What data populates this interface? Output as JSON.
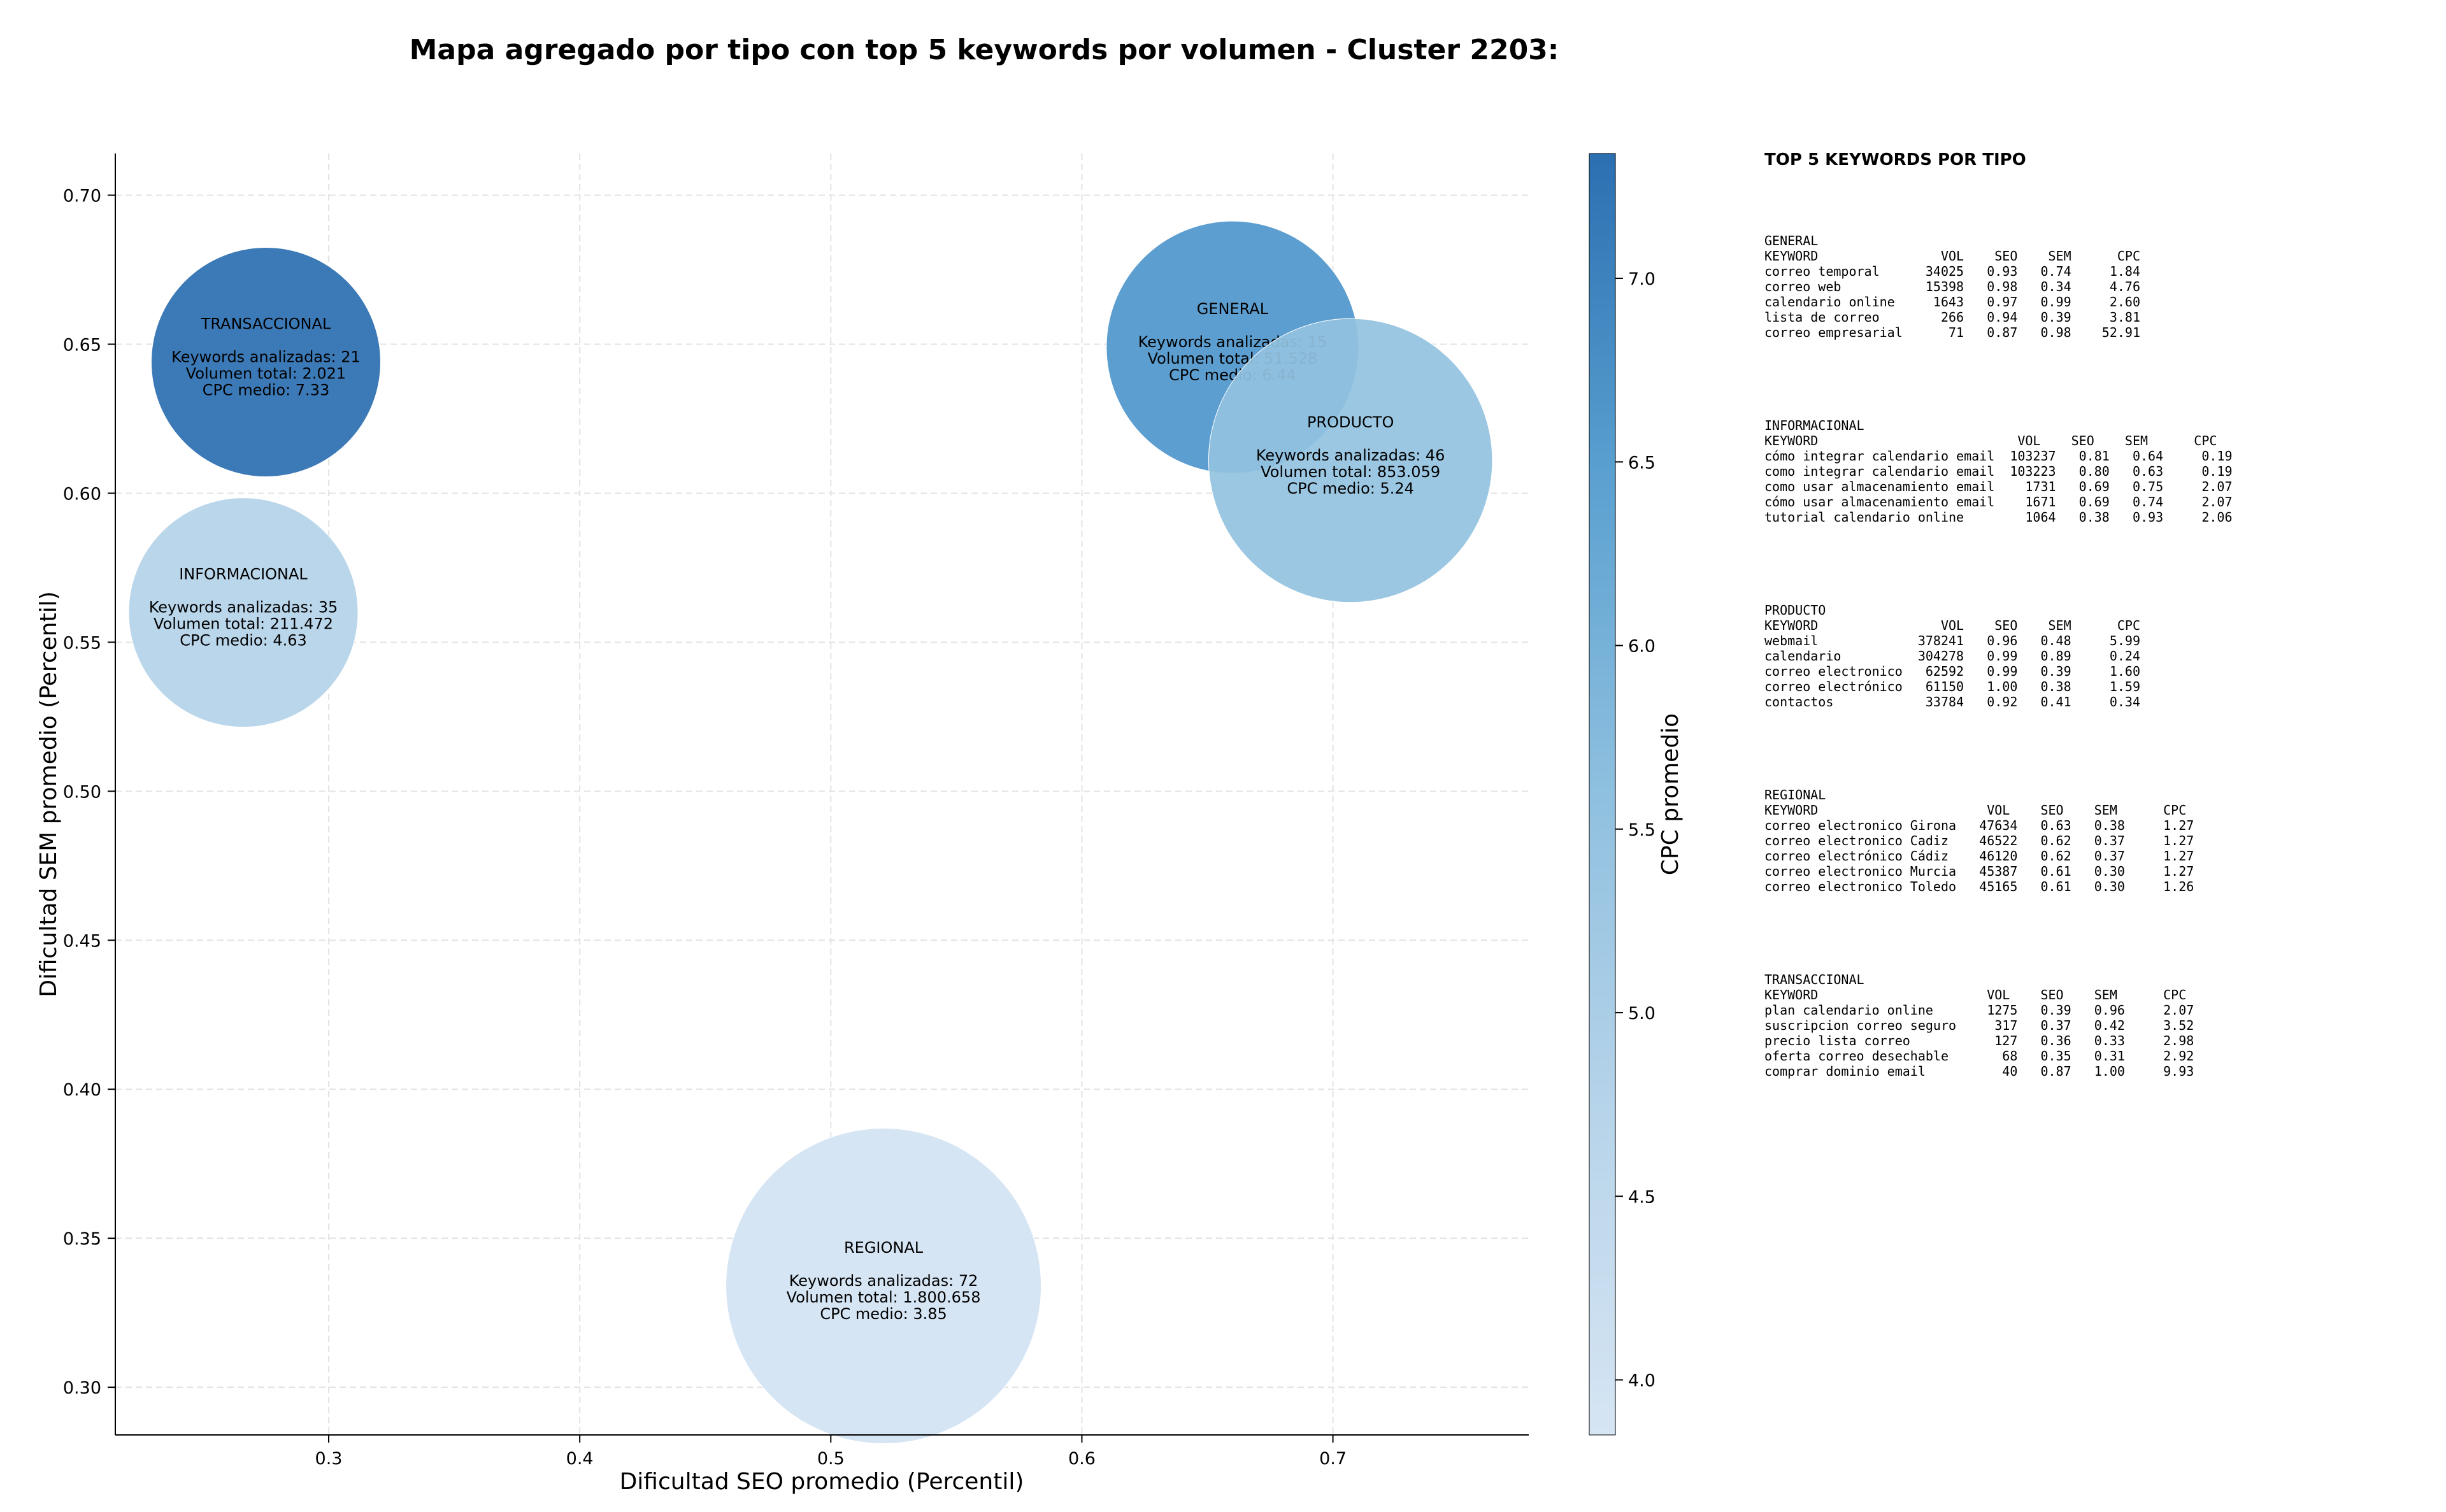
{
  "chart_data": {
    "type": "scatter",
    "title": "Mapa agregado por tipo con top 5 keywords por volumen - Cluster 2203:",
    "xlabel": "Dificultad SEO promedio (Percentil)",
    "ylabel": "Dificultad SEM promedio (Percentil)",
    "colorbar_label": "CPC promedio",
    "xlim": [
      0.215,
      0.778
    ],
    "ylim": [
      0.284,
      0.714
    ],
    "xticks": [
      "0.3",
      "0.4",
      "0.5",
      "0.6",
      "0.7"
    ],
    "yticks": [
      "0.30",
      "0.35",
      "0.40",
      "0.45",
      "0.50",
      "0.55",
      "0.60",
      "0.65",
      "0.70"
    ],
    "colorbar_range": [
      3.85,
      7.34
    ],
    "colorbar_ticks": [
      "4.0",
      "4.5",
      "5.0",
      "5.5",
      "6.0",
      "6.5",
      "7.0"
    ],
    "grid": true,
    "bubbles": [
      {
        "name": "TRANSACCIONAL",
        "x": 0.275,
        "y": 0.644,
        "keywords": "Keywords analizadas: 21",
        "volume_text": "Volumen total: 2.021",
        "cpc_text": "CPC medio: 7.33",
        "cpc": 7.33,
        "size": 0.8,
        "color": "#2b6fb1"
      },
      {
        "name": "INFORMACIONAL",
        "x": 0.266,
        "y": 0.56,
        "keywords": "Keywords analizadas: 35",
        "volume_text": "Volumen total: 211.472",
        "cpc_text": "CPC medio: 4.63",
        "cpc": 4.63,
        "size": 0.8,
        "color": "#b4d3e9"
      },
      {
        "name": "GENERAL",
        "x": 0.66,
        "y": 0.649,
        "keywords": "Keywords analizadas: 15",
        "volume_text": "Volumen total: 51.528",
        "cpc_text": "CPC medio: 6.44",
        "cpc": 6.44,
        "size": 0.88,
        "color": "#4e96cc"
      },
      {
        "name": "PRODUCTO",
        "x": 0.707,
        "y": 0.611,
        "keywords": "Keywords analizadas: 46",
        "volume_text": "Volumen total: 853.059",
        "cpc_text": "CPC medio: 5.24",
        "cpc": 5.24,
        "size": 0.99,
        "color": "#93c2e0"
      },
      {
        "name": "REGIONAL",
        "x": 0.521,
        "y": 0.334,
        "keywords": "Keywords analizadas: 72",
        "volume_text": "Volumen total: 1.800.658",
        "cpc_text": "CPC medio: 3.85",
        "cpc": 3.85,
        "size": 1.1,
        "color": "#d3e3f3"
      }
    ]
  },
  "side_panel": {
    "heading": "TOP 5 KEYWORDS POR TIPO",
    "blocks": [
      {
        "type": "GENERAL",
        "header": "KEYWORD                VOL    SEO    SEM      CPC",
        "rows": [
          "correo temporal      34025   0.93   0.74     1.84",
          "correo web           15398   0.98   0.34     4.76",
          "calendario online     1643   0.97   0.99     2.60",
          "lista de correo        266   0.94   0.39     3.81",
          "correo empresarial      71   0.87   0.98    52.91"
        ]
      },
      {
        "type": "INFORMACIONAL",
        "header": "KEYWORD                          VOL    SEO    SEM      CPC",
        "rows": [
          "cómo integrar calendario email  103237   0.81   0.64     0.19",
          "como integrar calendario email  103223   0.80   0.63     0.19",
          "como usar almacenamiento email    1731   0.69   0.75     2.07",
          "cómo usar almacenamiento email    1671   0.69   0.74     2.07",
          "tutorial calendario online        1064   0.38   0.93     2.06"
        ]
      },
      {
        "type": "PRODUCTO",
        "header": "KEYWORD                VOL    SEO    SEM      CPC",
        "rows": [
          "webmail             378241   0.96   0.48     5.99",
          "calendario          304278   0.99   0.89     0.24",
          "correo electronico   62592   0.99   0.39     1.60",
          "correo electrónico   61150   1.00   0.38     1.59",
          "contactos            33784   0.92   0.41     0.34"
        ]
      },
      {
        "type": "REGIONAL",
        "header": "KEYWORD                      VOL    SEO    SEM      CPC",
        "rows": [
          "correo electronico Girona   47634   0.63   0.38     1.27",
          "correo electronico Cadiz    46522   0.62   0.37     1.27",
          "correo electrónico Cádiz    46120   0.62   0.37     1.27",
          "correo electronico Murcia   45387   0.61   0.30     1.27",
          "correo electronico Toledo   45165   0.61   0.30     1.26"
        ]
      },
      {
        "type": "TRANSACCIONAL",
        "header": "KEYWORD                      VOL    SEO    SEM      CPC",
        "rows": [
          "plan calendario online       1275   0.39   0.96     2.07",
          "suscripcion correo seguro     317   0.37   0.42     3.52",
          "precio lista correo           127   0.36   0.33     2.98",
          "oferta correo desechable       68   0.35   0.31     2.92",
          "comprar dominio email          40   0.87   1.00     9.93"
        ]
      }
    ]
  }
}
